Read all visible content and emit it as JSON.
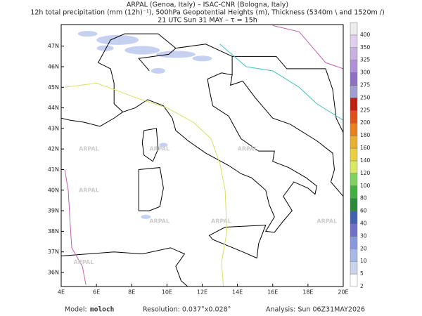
{
  "header": {
    "line1": "ARPAL (Genoa, Italy)  –  ISAC-CNR (Bologna, Italy)",
    "line2": "12h total precipitation (mm (12h)⁻¹), 500hPa Geopotential Heights (m), Thickness (5340m \\ and 1520m /)",
    "line3": "21 UTC Sun 31 MAY  –  τ = 15h"
  },
  "map": {
    "lat_labels": [
      "36N",
      "37N",
      "38N",
      "39N",
      "40N",
      "41N",
      "42N",
      "43N",
      "44N",
      "45N",
      "46N",
      "47N"
    ],
    "lon_labels": [
      "4E",
      "6E",
      "8E",
      "10E",
      "12E",
      "14E",
      "16E",
      "18E",
      "20E"
    ],
    "watermark": "ARPAL"
  },
  "colorbar": {
    "levels": [
      2,
      5,
      10,
      20,
      30,
      40,
      60,
      80,
      100,
      120,
      140,
      160,
      180,
      200,
      225,
      250,
      275,
      300,
      325,
      350,
      400
    ],
    "colors": [
      "#ffffff",
      "#c8d4ee",
      "#a8b8e6",
      "#8898dc",
      "#7070c8",
      "#4060b0",
      "#2a8a3a",
      "#40b040",
      "#80d060",
      "#d8e860",
      "#e8d040",
      "#e8b030",
      "#e88020",
      "#e05018",
      "#c02010",
      "#a0a0d0",
      "#9070c0",
      "#b090d8",
      "#c8b0e0",
      "#e0d0f0",
      "#ececec"
    ]
  },
  "footer": {
    "model_label": "Model:",
    "model": "moloch",
    "resolution": "Resolution: 0.037°x0.028°",
    "analysis": "Analysis: Sun 06Z31MAY2026"
  }
}
